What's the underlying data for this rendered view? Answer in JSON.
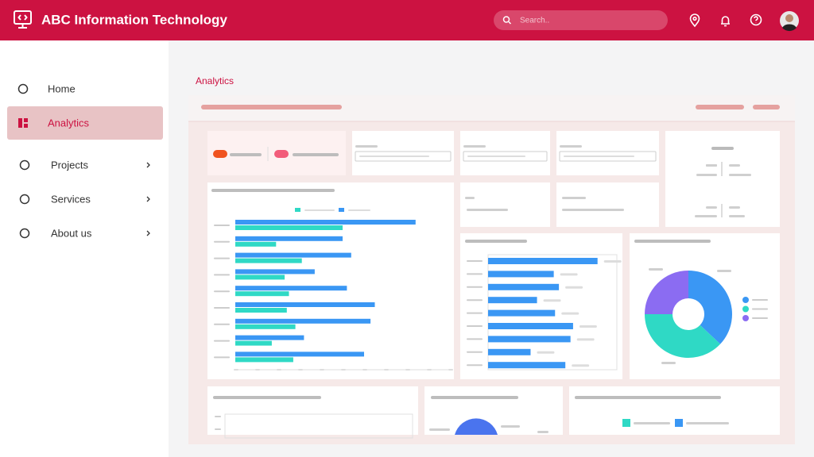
{
  "header": {
    "title": "ABC Information Technology",
    "search_placeholder": "Search.."
  },
  "sidebar": {
    "items": [
      "Home",
      "Analytics",
      "Projects",
      "Services",
      "About us"
    ],
    "active": 1
  },
  "page_title": "Analytics",
  "charts": [
    {
      "type": "bar",
      "orientation": "horizontal",
      "xlim": [
        0,
        100
      ],
      "series": [
        {
          "color": "#3a97f4",
          "values": [
            84,
            50,
            54,
            37,
            52,
            65,
            63,
            32,
            60
          ]
        },
        {
          "color": "#2fd9c5",
          "values": [
            50,
            19,
            31,
            23,
            25,
            24,
            28,
            17,
            27
          ]
        }
      ]
    },
    {
      "type": "bar",
      "orientation": "horizontal",
      "xlim": [
        0,
        100
      ],
      "series": [
        {
          "color": "#3a97f4",
          "values": [
            85,
            51,
            55,
            38,
            52,
            66,
            64,
            33,
            60
          ]
        }
      ]
    },
    {
      "type": "donut",
      "values": [
        37,
        38,
        25
      ],
      "colors": [
        "#3a97f4",
        "#2fd9c5",
        "#8b6cf2"
      ]
    }
  ]
}
